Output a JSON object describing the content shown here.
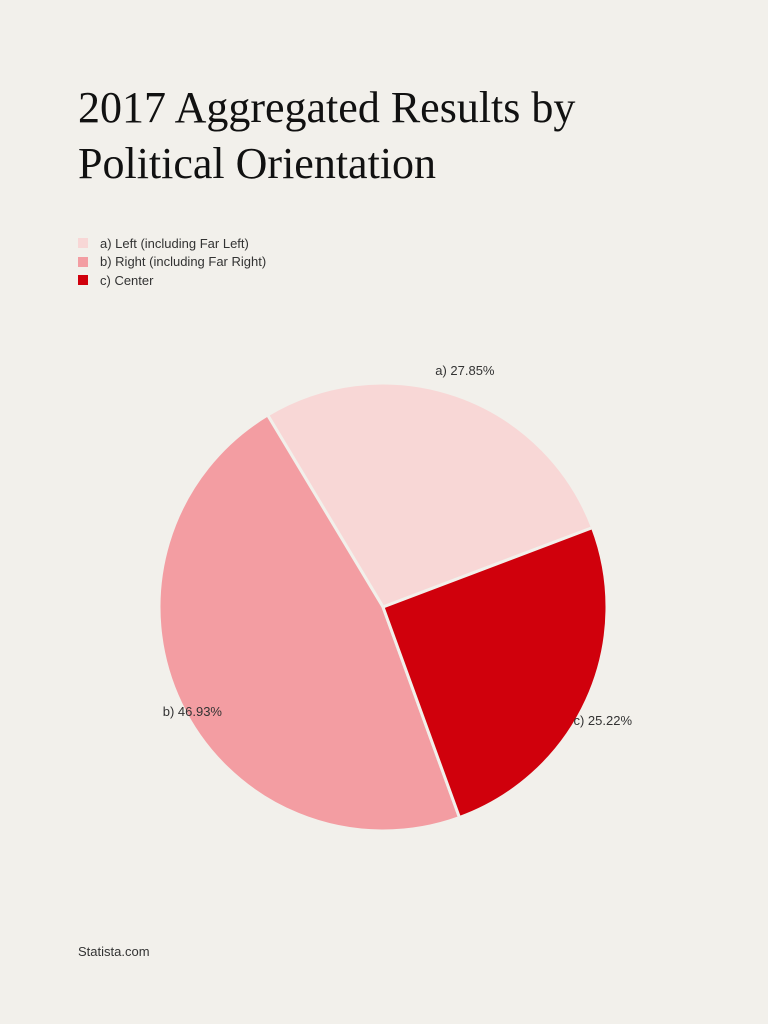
{
  "chart_data": {
    "type": "pie",
    "title": "2017 Aggregated Results by Political Orientation",
    "categories": [
      "a) Left (including Far Left)",
      "b) Right (including Far Right)",
      "c) Center"
    ],
    "values": [
      27.85,
      46.93,
      25.22
    ],
    "data_labels": [
      "a) 27.85%",
      "b) 46.93%",
      "c) 25.22%"
    ],
    "colors": [
      "#f8d7d6",
      "#f39da2",
      "#d0000c"
    ],
    "legend_position": "top-left"
  },
  "footer": {
    "source": "Statista.com"
  }
}
